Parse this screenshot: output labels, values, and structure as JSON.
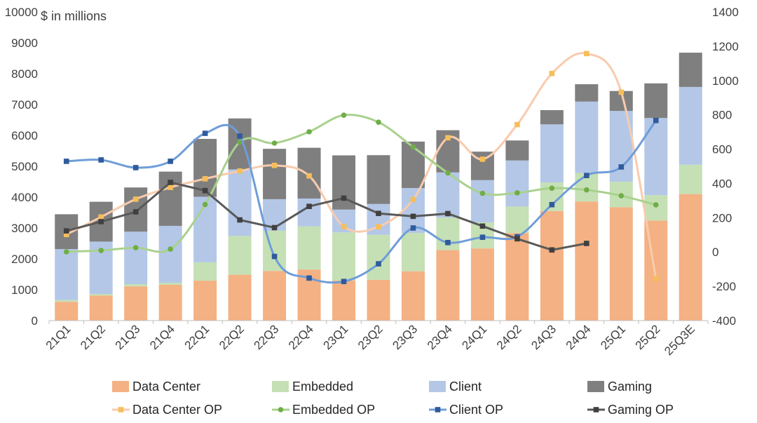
{
  "chart_data": {
    "type": "bar",
    "stacked": true,
    "overlay_type": "line",
    "unit_label": "$ in millions",
    "categories": [
      "21Q1",
      "21Q2",
      "21Q3",
      "21Q4",
      "22Q1",
      "22Q2",
      "22Q3",
      "22Q4",
      "23Q1",
      "23Q2",
      "23Q3",
      "23Q4",
      "24Q1",
      "24Q2",
      "24Q3",
      "24Q4",
      "25Q1",
      "25Q2",
      "25Q3E"
    ],
    "y_left": {
      "range": [
        0,
        10000
      ],
      "ticks": [
        0,
        1000,
        2000,
        3000,
        4000,
        5000,
        6000,
        7000,
        8000,
        9000,
        10000
      ]
    },
    "y_right": {
      "range": [
        -400,
        1400
      ],
      "ticks": [
        -400,
        -200,
        0,
        200,
        400,
        600,
        800,
        1000,
        1200,
        1400
      ]
    },
    "grid": false,
    "legend_position": "bottom",
    "bar_series": [
      {
        "name": "Data Center",
        "y_axis": "left",
        "color": "#F4B183",
        "values": [
          610,
          813,
          1110,
          1160,
          1293,
          1486,
          1609,
          1655,
          1295,
          1321,
          1598,
          2282,
          2337,
          2834,
          3549,
          3859,
          3674,
          3240,
          4100
        ]
      },
      {
        "name": "Embedded",
        "y_axis": "left",
        "color": "#C5E0B4",
        "values": [
          57,
          51,
          70,
          68,
          595,
          1257,
          1303,
          1397,
          1562,
          1459,
          1243,
          1057,
          846,
          861,
          927,
          923,
          823,
          824,
          950
        ]
      },
      {
        "name": "Client",
        "y_axis": "left",
        "color": "#B4C7E7",
        "values": [
          1651,
          1695,
          1701,
          1841,
          2124,
          2152,
          1022,
          903,
          739,
          998,
          1453,
          1461,
          1368,
          1492,
          1881,
          2313,
          2294,
          2499,
          2520
        ]
      },
      {
        "name": "Gaming",
        "y_axis": "left",
        "color": "#7F7F7F",
        "values": [
          1127,
          1291,
          1432,
          1757,
          1875,
          1655,
          1631,
          1644,
          1757,
          1581,
          1506,
          1368,
          922,
          648,
          462,
          563,
          647,
          1122,
          1110
        ]
      }
    ],
    "line_series": [
      {
        "name": "Data Center OP",
        "y_axis": "right",
        "color": "#F8CBAD",
        "marker": "square",
        "marker_color": "#F6BE5A",
        "values": [
          102,
          204,
          308,
          377,
          427,
          472,
          505,
          444,
          148,
          147,
          306,
          666,
          541,
          743,
          1041,
          1157,
          932,
          -155,
          null
        ]
      },
      {
        "name": "Embedded OP",
        "y_axis": "right",
        "color": "#A9D18E",
        "marker": "circle",
        "marker_color": "#70AD47",
        "values": [
          1,
          9,
          25,
          17,
          277,
          641,
          635,
          701,
          798,
          757,
          612,
          461,
          342,
          345,
          372,
          362,
          328,
          275,
          null
        ]
      },
      {
        "name": "Client OP",
        "y_axis": "right",
        "color": "#6F9DD8",
        "marker": "square",
        "marker_color": "#2F5B9C",
        "values": [
          529,
          537,
          492,
          529,
          692,
          676,
          -26,
          -152,
          -172,
          -69,
          140,
          55,
          86,
          89,
          276,
          446,
          496,
          767,
          null
        ]
      },
      {
        "name": "Gaming OP",
        "y_axis": "right",
        "color": "#595959",
        "marker": "square",
        "marker_color": "#404040",
        "values": [
          123,
          177,
          234,
          406,
          358,
          187,
          142,
          266,
          314,
          225,
          208,
          224,
          151,
          77,
          12,
          50,
          null,
          null,
          null
        ]
      }
    ]
  }
}
